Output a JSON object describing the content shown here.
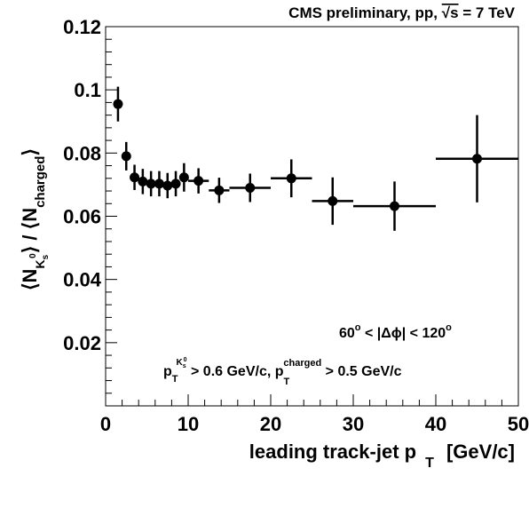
{
  "chart_data": {
    "type": "scatter",
    "title": "CMS preliminary, pp, √s = 7 TeV",
    "xlabel": "leading track-jet p T [GeV/c]",
    "ylabel": "⟨N K0s⟩ / ⟨N charged⟩",
    "xlim": [
      0,
      50
    ],
    "ylim": [
      0,
      0.12
    ],
    "xticks": [
      0,
      10,
      20,
      30,
      40,
      50
    ],
    "yticks": [
      0.02,
      0.04,
      0.06,
      0.08,
      0.1,
      0.12
    ],
    "ytick_labels": [
      "0.02",
      "0.04",
      "0.06",
      "0.08",
      "0.1",
      "0.12"
    ],
    "xtick_labels": [
      "0",
      "10",
      "20",
      "30",
      "40",
      "50"
    ],
    "grid": false,
    "legend": "none",
    "series": [
      {
        "points": [
          {
            "x": 1.5,
            "xerr": 0.5,
            "y": 0.0955,
            "yerr": 0.0055
          },
          {
            "x": 2.5,
            "xerr": 0.5,
            "y": 0.079,
            "yerr": 0.0045
          },
          {
            "x": 3.5,
            "xerr": 0.5,
            "y": 0.0723,
            "yerr": 0.004
          },
          {
            "x": 4.5,
            "xerr": 0.5,
            "y": 0.071,
            "yerr": 0.004
          },
          {
            "x": 5.5,
            "xerr": 0.5,
            "y": 0.0703,
            "yerr": 0.004
          },
          {
            "x": 6.5,
            "xerr": 0.5,
            "y": 0.0703,
            "yerr": 0.004
          },
          {
            "x": 7.5,
            "xerr": 0.5,
            "y": 0.0697,
            "yerr": 0.004
          },
          {
            "x": 8.5,
            "xerr": 0.5,
            "y": 0.0703,
            "yerr": 0.004
          },
          {
            "x": 9.5,
            "xerr": 0.5,
            "y": 0.0723,
            "yerr": 0.0045
          },
          {
            "x": 11.25,
            "xerr": 1.25,
            "y": 0.0712,
            "yerr": 0.004
          },
          {
            "x": 13.75,
            "xerr": 1.25,
            "y": 0.0682,
            "yerr": 0.004
          },
          {
            "x": 17.5,
            "xerr": 2.5,
            "y": 0.069,
            "yerr": 0.0045
          },
          {
            "x": 22.5,
            "xerr": 2.5,
            "y": 0.072,
            "yerr": 0.006
          },
          {
            "x": 27.5,
            "xerr": 2.5,
            "y": 0.0648,
            "yerr": 0.0075
          },
          {
            "x": 35,
            "xerr": 5,
            "y": 0.0632,
            "yerr": 0.0078
          },
          {
            "x": 45,
            "xerr": 5,
            "y": 0.0782,
            "yerr": 0.0138
          }
        ]
      }
    ],
    "annotations": [
      "60° < |Δϕ| < 120°",
      "p T K0s > 0.6 GeV/c, p T charged > 0.5 GeV/c"
    ],
    "colors": {
      "marker": "#000000",
      "axes": "#000000"
    }
  },
  "labels": {
    "title_main": "CMS preliminary, pp, ",
    "title_sqrt": "√s",
    "title_tail": " = 7 TeV",
    "xlabel_main": "leading track-jet p",
    "xlabel_sub": "T",
    "xlabel_tail": " [GeV/c]",
    "ylabel_open": "⟨N",
    "ylabel_ksub": "K",
    "ylabel_ksubsub": "s",
    "ylabel_ksup": "0",
    "ylabel_mid": "⟩ / ⟨N",
    "ylabel_charged": "charged",
    "ylabel_close": "⟩",
    "ann1_a": "60",
    "ann1_deg1": "o",
    "ann1_b": " < |Δϕ| < 120",
    "ann1_deg2": "o",
    "ann2_p": "p",
    "ann2_T": "T",
    "ann2_K": "K",
    "ann2_s": "s",
    "ann2_0": "0",
    "ann2_mid": " > 0.6 GeV/c, p",
    "ann2_T2": "T",
    "ann2_charged": "charged",
    "ann2_tail": "  > 0.5 GeV/c"
  }
}
